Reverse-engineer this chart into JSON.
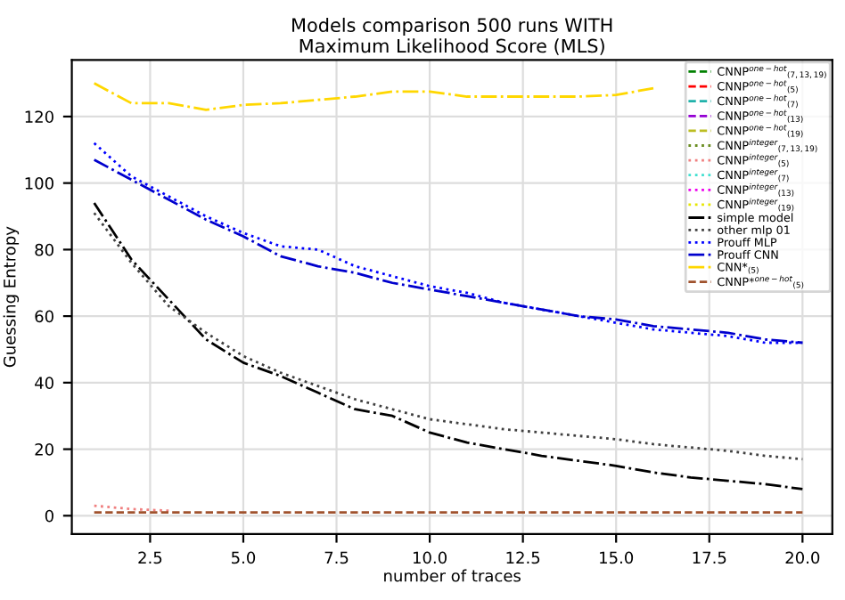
{
  "chart_data": {
    "type": "line",
    "title": "Models comparison 500 runs WITH\nMaximum Likelihood Score (MLS)",
    "xlabel": "number of traces",
    "ylabel": "Guessing Entropy",
    "x": [
      1,
      2,
      3,
      4,
      5,
      6,
      7,
      8,
      9,
      10,
      11,
      12,
      13,
      14,
      15,
      16,
      17,
      18,
      19,
      20
    ],
    "xlim": [
      0.4,
      20.8
    ],
    "xticks": [
      2.5,
      {
        "value": 5,
        "label": "5.0"
      },
      7.5,
      {
        "value": 10,
        "label": "10.0"
      },
      12.5,
      {
        "value": 15,
        "label": "15.0"
      },
      17.5,
      {
        "value": 20,
        "label": "20.0"
      }
    ],
    "ylim": [
      -5.5,
      137
    ],
    "yticks": [
      0,
      20,
      40,
      60,
      80,
      100,
      120
    ],
    "grid": true,
    "legend": "top right",
    "series": [
      {
        "name": "CNNP$^{one−hot}$$_{(7,13,19)}$",
        "color": "#008000",
        "line_style": "dashed",
        "values": [
          null,
          null,
          null,
          null,
          null,
          null,
          null,
          null,
          null,
          null,
          null,
          null,
          null,
          null,
          null,
          null,
          null,
          null,
          null,
          null
        ]
      },
      {
        "name": "CNNP$^{one−hot}$$_{(5)}$",
        "color": "#ff0000",
        "line_style": "dashed",
        "values": [
          null,
          null,
          null,
          null,
          null,
          null,
          null,
          null,
          null,
          null,
          null,
          null,
          null,
          null,
          null,
          null,
          null,
          null,
          null,
          null
        ]
      },
      {
        "name": "CNNP$^{one−hot}$$_{(7)}$",
        "color": "#20b2aa",
        "line_style": "dashed",
        "values": [
          null,
          null,
          null,
          null,
          null,
          null,
          null,
          null,
          null,
          null,
          null,
          null,
          null,
          null,
          null,
          null,
          null,
          null,
          null,
          null
        ]
      },
      {
        "name": "CNNP$^{one−hot}$$_{(13)}$",
        "color": "#9400d3",
        "line_style": "dashed",
        "values": [
          null,
          null,
          null,
          null,
          null,
          null,
          null,
          null,
          null,
          null,
          null,
          null,
          null,
          null,
          null,
          null,
          null,
          null,
          null,
          null
        ]
      },
      {
        "name": "CNNP$^{one−hot}$$_{(19)}$",
        "color": "#bcbd22",
        "line_style": "dashed",
        "values": [
          null,
          null,
          null,
          null,
          null,
          null,
          null,
          null,
          null,
          null,
          null,
          null,
          null,
          null,
          null,
          null,
          null,
          null,
          null,
          null
        ]
      },
      {
        "name": "CNNP$^{integer}$$_{(7,13,19)}$",
        "color": "#6b8e23",
        "line_style": "dotted",
        "values": [
          null,
          null,
          null,
          null,
          null,
          null,
          null,
          null,
          null,
          null,
          null,
          null,
          null,
          null,
          null,
          null,
          null,
          null,
          null,
          null
        ]
      },
      {
        "name": "CNNP$^{integer}$$_{(5)}$",
        "color": "#f08080",
        "line_style": "dotted",
        "values": [
          3,
          2,
          1.5,
          null,
          null,
          null,
          null,
          null,
          null,
          null,
          null,
          null,
          null,
          null,
          null,
          null,
          null,
          null,
          null,
          null
        ]
      },
      {
        "name": "CNNP$^{integer}$$_{(7)}$",
        "color": "#40e0d0",
        "line_style": "dotted",
        "values": [
          null,
          null,
          null,
          null,
          null,
          null,
          null,
          null,
          null,
          null,
          null,
          null,
          null,
          null,
          null,
          null,
          null,
          null,
          null,
          null
        ]
      },
      {
        "name": "CNNP$^{integer}$$_{(13)}$",
        "color": "#ee00ee",
        "line_style": "dotted",
        "values": [
          null,
          null,
          null,
          null,
          null,
          null,
          null,
          null,
          null,
          null,
          null,
          null,
          null,
          null,
          null,
          null,
          null,
          null,
          null,
          null
        ]
      },
      {
        "name": "CNNP$^{integer}$$_{(19)}$",
        "color": "#e6e600",
        "line_style": "dotted",
        "values": [
          null,
          null,
          null,
          null,
          null,
          null,
          null,
          null,
          null,
          null,
          null,
          null,
          null,
          null,
          null,
          null,
          null,
          null,
          null,
          null
        ]
      },
      {
        "name": "simple model",
        "color": "#000000",
        "line_style": "dashdot",
        "values": [
          94,
          77,
          65,
          53,
          46,
          42,
          37,
          32,
          30,
          25,
          22,
          20,
          18,
          16.5,
          15,
          13,
          11.5,
          10.5,
          9.5,
          8
        ]
      },
      {
        "name": "other mlp 01",
        "color": "#404040",
        "line_style": "dotted",
        "values": [
          91,
          76,
          63,
          55,
          48,
          43,
          39,
          35,
          32,
          29,
          27.5,
          26,
          25,
          24,
          23,
          21.5,
          20.5,
          19.5,
          18,
          17
        ]
      },
      {
        "name": "Prouff MLP",
        "color": "#0000ff",
        "line_style": "dotted",
        "values": [
          112,
          102,
          96,
          90,
          85,
          81,
          80,
          75,
          72,
          69,
          67,
          64,
          62,
          60,
          58,
          56,
          55,
          54,
          52,
          52
        ]
      },
      {
        "name": "Prouff CNN",
        "color": "#0000cd",
        "line_style": "dashdot",
        "values": [
          107,
          101,
          95,
          89,
          84,
          78,
          75,
          73,
          70,
          68,
          66,
          64,
          62,
          60,
          59,
          57,
          56,
          55,
          53,
          52
        ]
      },
      {
        "name": "CNN*$_{(5)}$",
        "color": "#ffd700",
        "line_style": "dashdot",
        "values": [
          130,
          124,
          124,
          122,
          123.5,
          124,
          125,
          126,
          127.5,
          127.5,
          126,
          126,
          126,
          126,
          126.5,
          128.5,
          null,
          null,
          null,
          null
        ]
      },
      {
        "name": "CNNP*$^{one−hot}$$_{(5)}$",
        "color": "#a0522d",
        "line_style": "dashed",
        "values": [
          1,
          1,
          1,
          1,
          1,
          1,
          1,
          1,
          1,
          1,
          1,
          1,
          1,
          1,
          1,
          1,
          1,
          1,
          1,
          1
        ]
      }
    ]
  }
}
